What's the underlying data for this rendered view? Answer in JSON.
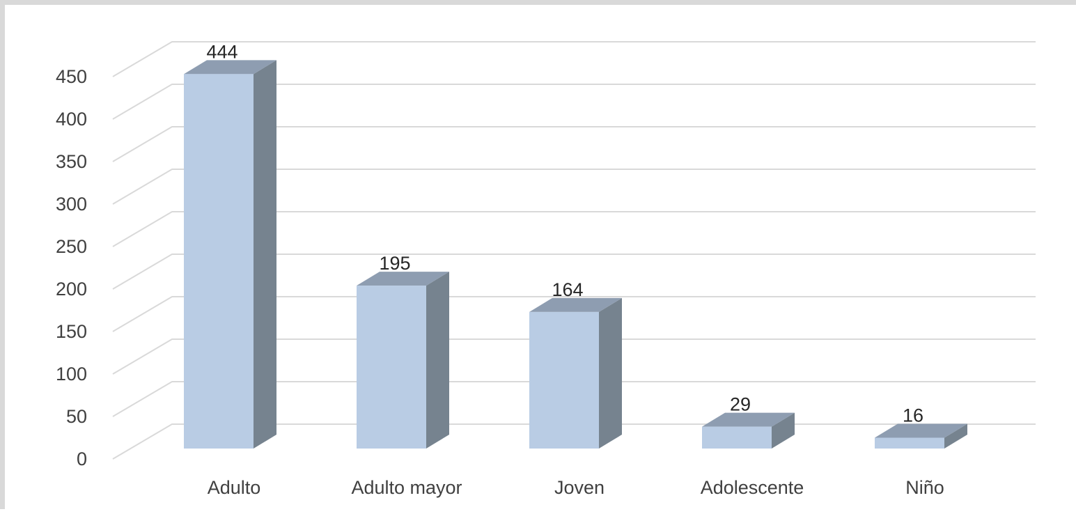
{
  "chart_data": {
    "type": "bar",
    "style": "3d-column",
    "categories": [
      "Adulto",
      "Adulto mayor",
      "Joven",
      "Adolescente",
      "Niño"
    ],
    "values": [
      444,
      195,
      164,
      29,
      16
    ],
    "title": "",
    "xlabel": "",
    "ylabel": "",
    "ylim": [
      0,
      450
    ],
    "yticks": [
      0,
      50,
      100,
      150,
      200,
      250,
      300,
      350,
      400,
      450
    ],
    "grid": true,
    "legend": "none",
    "colors": {
      "bar_front": "#b9cce4",
      "bar_side": "#76838f",
      "bar_top": "#8e9db1",
      "grid": "#d9d9d9",
      "text": "#404040"
    }
  }
}
